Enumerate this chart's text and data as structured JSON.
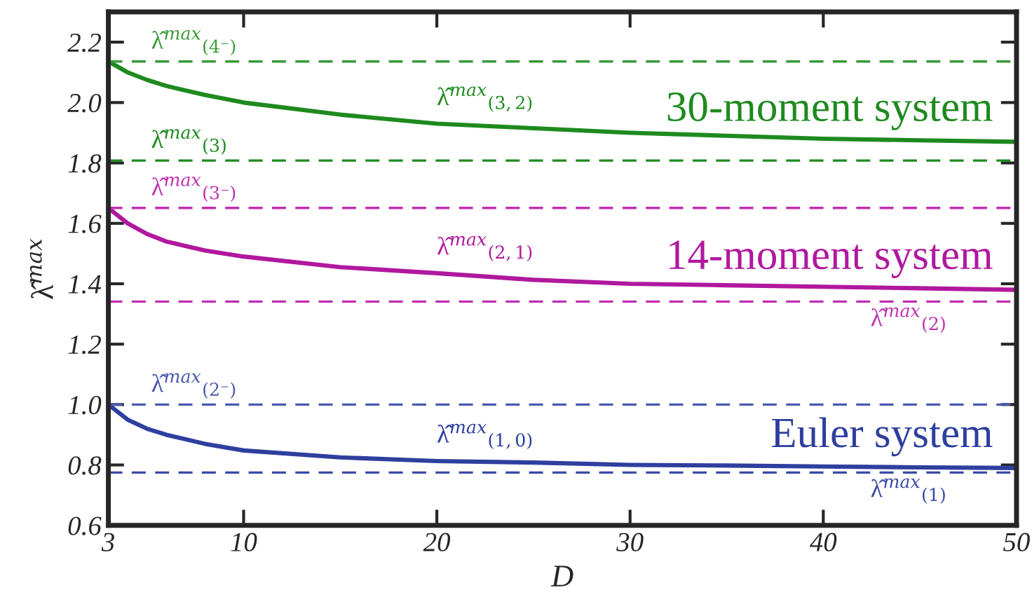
{
  "chart_data": {
    "type": "line",
    "xlabel": "D",
    "ylabel": "λ̂$^{max}$",
    "x": [
      3,
      4,
      5,
      6,
      8,
      10,
      15,
      20,
      25,
      30,
      35,
      40,
      45,
      50
    ],
    "series": [
      {
        "name": "30-moment system",
        "color": "#1e8a1e",
        "values": [
          2.136,
          2.1,
          2.075,
          2.055,
          2.025,
          2.0,
          1.96,
          1.93,
          1.915,
          1.9,
          1.89,
          1.88,
          1.875,
          1.87
        ]
      },
      {
        "name": "14-moment system",
        "color": "#b0189e",
        "values": [
          1.651,
          1.6,
          1.565,
          1.54,
          1.51,
          1.49,
          1.455,
          1.435,
          1.413,
          1.4,
          1.395,
          1.39,
          1.385,
          1.38
        ]
      },
      {
        "name": "Euler system",
        "color": "#2e3f9e",
        "values": [
          1.0,
          0.95,
          0.92,
          0.9,
          0.87,
          0.848,
          0.825,
          0.813,
          0.808,
          0.8,
          0.798,
          0.795,
          0.792,
          0.79
        ]
      }
    ],
    "ref_lines": [
      {
        "axis": "y",
        "value": 2.136,
        "label": "λ̂$^{max}$$_{(4⁻)}$",
        "color": "#3a9a3a",
        "line_style": "dashed"
      },
      {
        "axis": "y",
        "value": 1.808,
        "label": "λ̂$^{max}$$_{(3)}$",
        "color": "#1e8a1e",
        "line_style": "dashed"
      },
      {
        "axis": "y",
        "value": 1.651,
        "label": "λ̂$^{max}$$_{(3⁻)}$",
        "color": "#c030b0",
        "line_style": "dashed"
      },
      {
        "axis": "y",
        "value": 1.341,
        "label": "λ̂$^{max}$$_{(2)}$",
        "color": "#c030b0",
        "line_style": "dashed"
      },
      {
        "axis": "y",
        "value": 1.0,
        "label": "λ̂$^{max}$$_{(2⁻)}$",
        "color": "#4a5ab0",
        "line_style": "dashed"
      },
      {
        "axis": "y",
        "value": 0.775,
        "label": "λ̂$^{max}$$_{(1)}$",
        "color": "#3a4aa8",
        "line_style": "dashed"
      }
    ],
    "annotations": [
      "λ̂$^{max}$$_{(3,2)}$",
      "λ̂$^{max}$$_{(2,1)}$",
      "λ̂$^{max}$$_{(1,0)}$"
    ],
    "xlim": [
      3,
      50
    ],
    "xticks": [
      3,
      10,
      20,
      30,
      40,
      50
    ],
    "ylim": [
      0.6,
      2.3
    ],
    "yticks": [
      0.6,
      0.8,
      {
        "value": 1,
        "label": "1.0"
      },
      1.2,
      1.4,
      1.6,
      1.8,
      {
        "value": 2,
        "label": "2.0"
      },
      2.2
    ],
    "grid": false,
    "legend": false,
    "line_style": "solid",
    "marker": "none"
  }
}
